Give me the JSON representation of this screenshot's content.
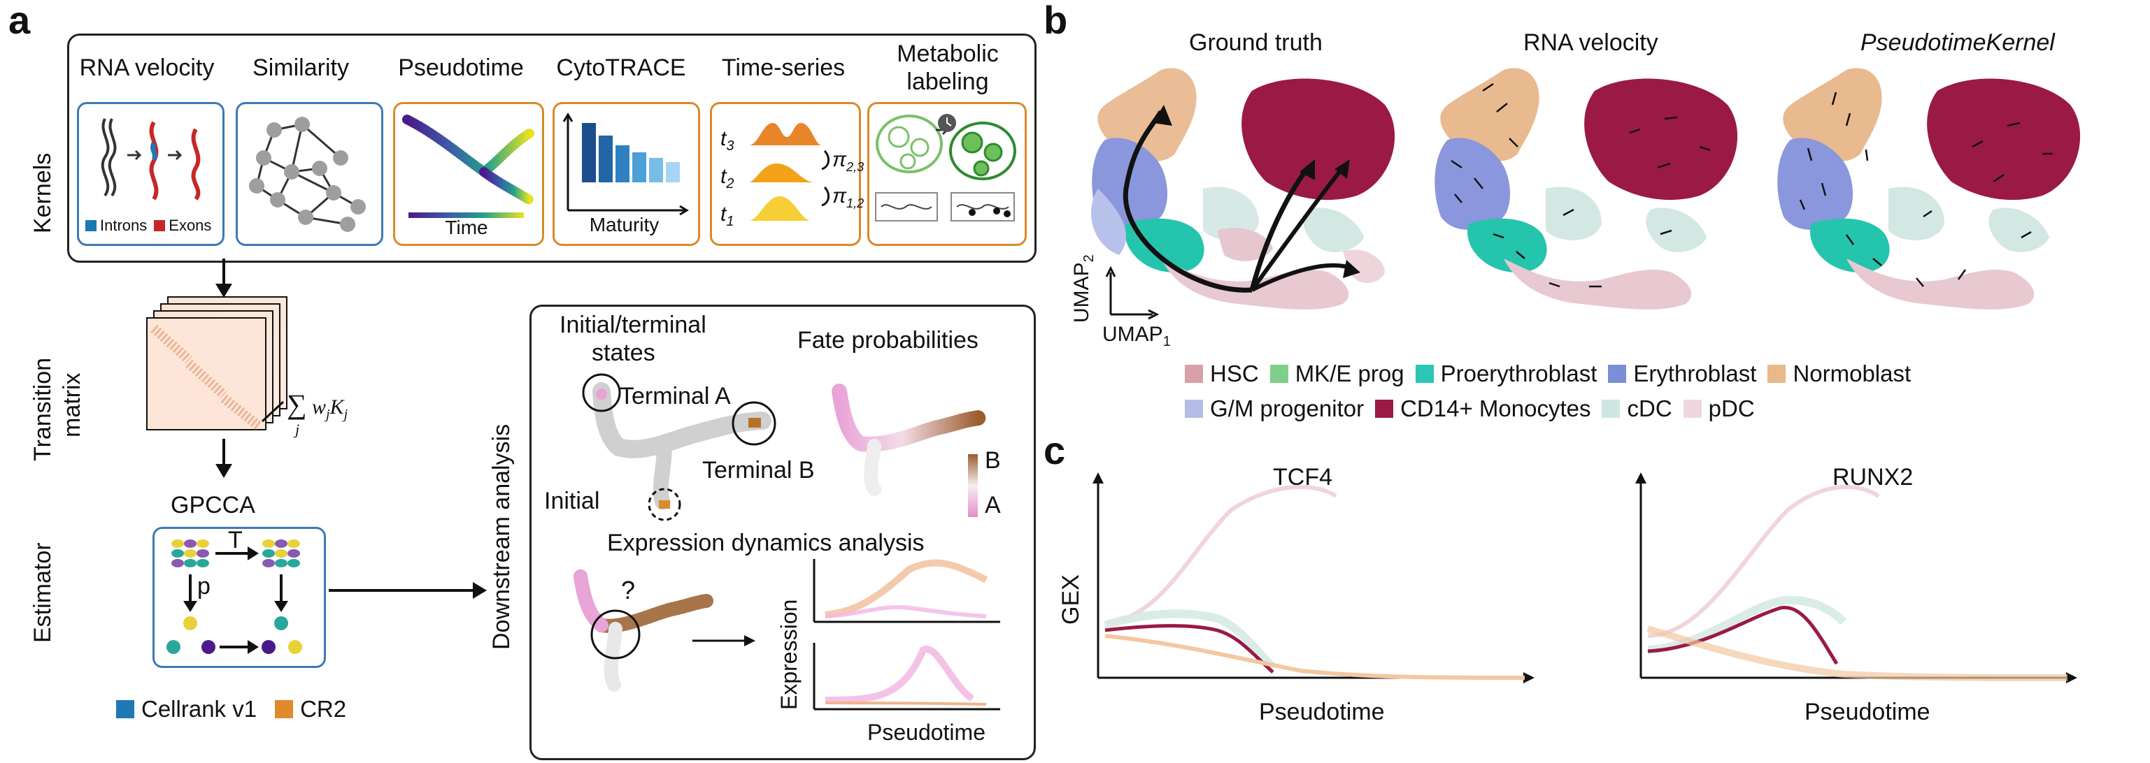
{
  "panels": {
    "a": "a",
    "b": "b",
    "c": "c"
  },
  "kernels": {
    "row_label": "Kernels",
    "items": [
      {
        "title": "RNA velocity",
        "legend_introns": "Introns",
        "legend_exons": "Exons"
      },
      {
        "title": "Similarity"
      },
      {
        "title": "Pseudotime",
        "axis": "Time"
      },
      {
        "title": "CytoTRACE",
        "axis": "Maturity"
      },
      {
        "title": "Time-series",
        "t3": "t",
        "t3s": "3",
        "t2": "t",
        "t2s": "2",
        "t1": "t",
        "t1s": "1",
        "pi23": "π",
        "pi23s": "2,3",
        "pi12": "π",
        "pi12s": "1,2"
      },
      {
        "title_line1": "Metabolic",
        "title_line2": "labeling"
      }
    ]
  },
  "transition": {
    "label_line1": "Transition",
    "label_line2": "matrix",
    "sum": "∑",
    "sum_sub": "j",
    "formula": "w",
    "formula_sub_w": "j",
    "formula_k": "K",
    "formula_sub_k": "j"
  },
  "estimator": {
    "label": "Estimator",
    "name": "GPCCA",
    "T": "T",
    "p": "p"
  },
  "versions": {
    "v1": "Cellrank v1",
    "v2": "CR2",
    "v1_color": "#1f77b4",
    "v2_color": "#e08a2c"
  },
  "downstream": {
    "label": "Downstream analysis",
    "states_title_line1": "Initial/terminal",
    "states_title_line2": "states",
    "terminal_a": "Terminal A",
    "terminal_b": "Terminal B",
    "initial": "Initial",
    "fate_title": "Fate probabilities",
    "fate_b": "B",
    "fate_a": "A",
    "expr_title": "Expression dynamics analysis",
    "question": "?",
    "expr_ylabel": "Expression",
    "expr_xlabel": "Pseudotime"
  },
  "umap": {
    "titles": [
      "Ground truth",
      "RNA velocity",
      "PseudotimeKernel"
    ],
    "axis_x": "UMAP",
    "axis_x_sub": "1",
    "axis_y": "UMAP",
    "axis_y_sub": "2"
  },
  "legend": [
    {
      "label": "HSC",
      "color": "#d9a0a8"
    },
    {
      "label": "MK/E prog",
      "color": "#7fcf8a"
    },
    {
      "label": "Proerythroblast",
      "color": "#2cc7b4"
    },
    {
      "label": "Erythroblast",
      "color": "#7b8fd6"
    },
    {
      "label": "Normoblast",
      "color": "#eab88a"
    },
    {
      "label": "G/M progenitor",
      "color": "#b3bde6"
    },
    {
      "label": "CD14+ Monocytes",
      "color": "#9a1a45"
    },
    {
      "label": "cDC",
      "color": "#cfe6e2"
    },
    {
      "label": "pDC",
      "color": "#f0d7de"
    }
  ],
  "gex": {
    "plots": [
      {
        "title": "TCF4",
        "xlabel": "Pseudotime",
        "ylabel": "GEX"
      },
      {
        "title": "RUNX2",
        "xlabel": "Pseudotime"
      }
    ]
  }
}
